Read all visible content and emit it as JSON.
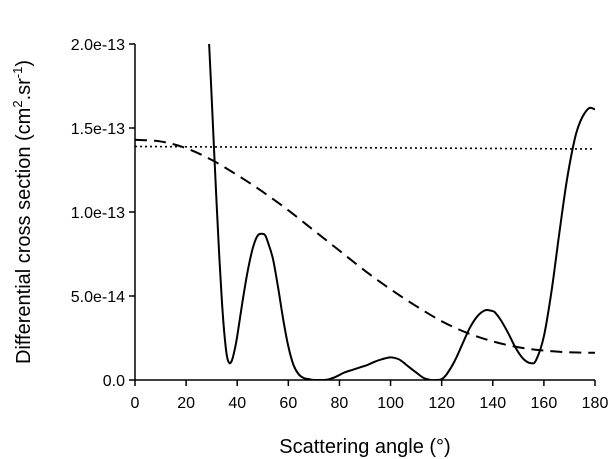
{
  "chart_data": {
    "type": "line",
    "xlabel": "Scattering angle (°)",
    "ylabel": {
      "base": "Differential cross section (cm",
      "sup1": "2",
      "mid": ".sr",
      "sup2": "-1",
      "end": ")"
    },
    "xlim": [
      0,
      180
    ],
    "ylim": [
      0,
      2e-13
    ],
    "x_ticks": [
      {
        "value": 0,
        "label": "0"
      },
      {
        "value": 20,
        "label": "20"
      },
      {
        "value": 40,
        "label": "40"
      },
      {
        "value": 60,
        "label": "60"
      },
      {
        "value": 80,
        "label": "80"
      },
      {
        "value": 100,
        "label": "100"
      },
      {
        "value": 120,
        "label": "120"
      },
      {
        "value": 140,
        "label": "140"
      },
      {
        "value": 160,
        "label": "160"
      },
      {
        "value": 180,
        "label": "180"
      }
    ],
    "y_ticks": [
      {
        "value": 0,
        "label": "0.0"
      },
      {
        "value": 5e-14,
        "label": "5.0e-14"
      },
      {
        "value": 1e-13,
        "label": "1.0e-13"
      },
      {
        "value": 1.5e-13,
        "label": "1.5e-13"
      },
      {
        "value": 2e-13,
        "label": "2.0e-13"
      }
    ],
    "grid": false,
    "series": [
      {
        "style": "solid",
        "x": [
          28,
          29,
          30,
          31,
          32,
          33,
          34,
          35,
          36,
          37,
          38,
          39,
          40,
          42,
          44,
          46,
          48,
          50,
          51,
          52,
          54,
          56,
          58,
          60,
          62,
          64,
          66,
          68,
          70,
          72,
          74,
          76,
          78,
          80,
          82,
          85,
          88,
          91,
          94,
          97,
          100,
          103,
          105,
          107,
          110,
          113,
          116,
          118,
          120,
          122,
          125,
          128,
          131,
          134,
          137,
          140,
          141,
          143,
          146,
          149,
          152,
          155,
          157,
          160,
          163,
          166,
          169,
          172,
          174,
          176,
          178,
          180
        ],
        "y": [
          2.2e-13,
          2e-13,
          1.68e-13,
          1.35e-13,
          1.03e-13,
          7.3e-14,
          4.7e-14,
          2.7e-14,
          1.4e-14,
          1e-14,
          1.2e-14,
          1.8e-14,
          2.6e-14,
          4.6e-14,
          6.4e-14,
          7.8e-14,
          8.6e-14,
          8.7e-14,
          8.6e-14,
          8.2e-14,
          7.2e-14,
          5.5e-14,
          3.6e-14,
          2e-14,
          9e-15,
          3.5e-15,
          1.2e-15,
          5e-16,
          0,
          0,
          0,
          5e-16,
          1.5e-15,
          3e-15,
          4.5e-15,
          6e-15,
          7.5e-15,
          9e-15,
          1.1e-14,
          1.25e-14,
          1.35e-14,
          1.25e-14,
          1.05e-14,
          8e-15,
          4.5e-15,
          1.2e-15,
          0,
          0,
          5e-16,
          3.5e-15,
          1.1e-14,
          2.1e-14,
          3.1e-14,
          3.8e-14,
          4.15e-14,
          4.1e-14,
          4e-14,
          3.6e-14,
          2.8e-14,
          1.9e-14,
          1.25e-14,
          1e-14,
          1.2e-14,
          2.6e-14,
          5.3e-14,
          8.7e-14,
          1.19e-13,
          1.43e-13,
          1.53e-13,
          1.59e-13,
          1.62e-13,
          1.61e-13
        ]
      },
      {
        "style": "dashed",
        "x": [
          0,
          10,
          20,
          30,
          40,
          50,
          60,
          70,
          80,
          90,
          100,
          110,
          120,
          130,
          140,
          150,
          160,
          170,
          180
        ],
        "y": [
          1.43e-13,
          1.42e-13,
          1.38e-13,
          1.31e-13,
          1.22e-13,
          1.12e-13,
          1.01e-13,
          8.9e-14,
          7.7e-14,
          6.5e-14,
          5.4e-14,
          4.4e-14,
          3.5e-14,
          2.8e-14,
          2.3e-14,
          1.95e-14,
          1.75e-14,
          1.65e-14,
          1.62e-14
        ]
      },
      {
        "style": "dotted",
        "x": [
          0,
          180
        ],
        "y": [
          1.39e-13,
          1.375e-13
        ]
      }
    ]
  }
}
